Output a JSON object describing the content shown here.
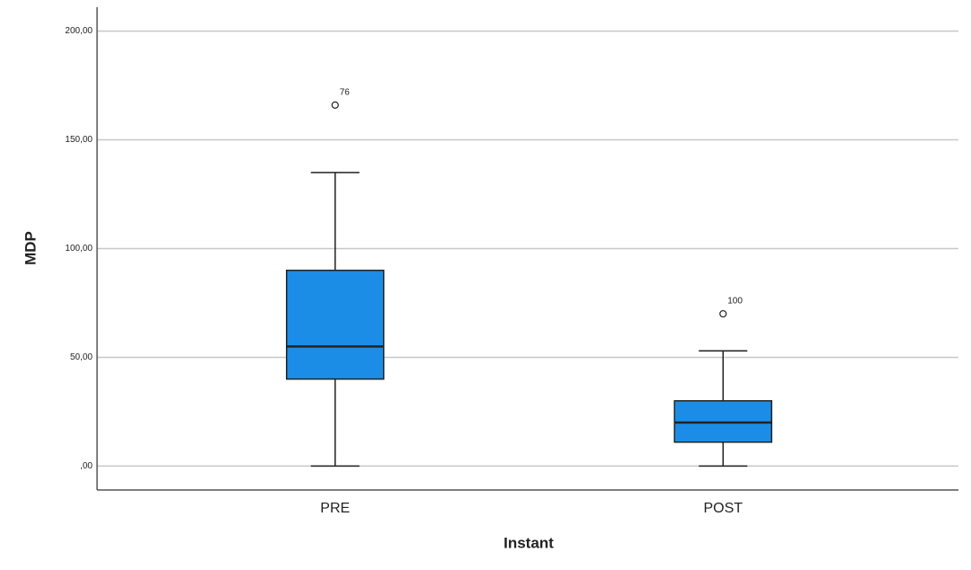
{
  "chart_data": {
    "type": "box",
    "x_label": "Instant",
    "y_label": "MDP",
    "categories": [
      "PRE",
      "POST"
    ],
    "min": [
      0,
      0
    ],
    "q1": [
      40,
      11
    ],
    "median": [
      55,
      20
    ],
    "q3": [
      90,
      30
    ],
    "max": [
      135,
      53
    ],
    "outliers": [
      [
        166
      ],
      [
        70
      ]
    ],
    "outlier_ids": [
      [
        "76"
      ],
      [
        "100"
      ]
    ],
    "color": "#1b8de6",
    "grid": true,
    "ylim": [
      -11,
      211
    ],
    "yticks": [
      {
        "value": 0,
        "label": ",00"
      },
      {
        "value": 50,
        "label": "50,00"
      },
      {
        "value": 100,
        "label": "100,00"
      },
      {
        "value": 150,
        "label": "150,00"
      },
      {
        "value": 200,
        "label": "200,00"
      }
    ]
  }
}
